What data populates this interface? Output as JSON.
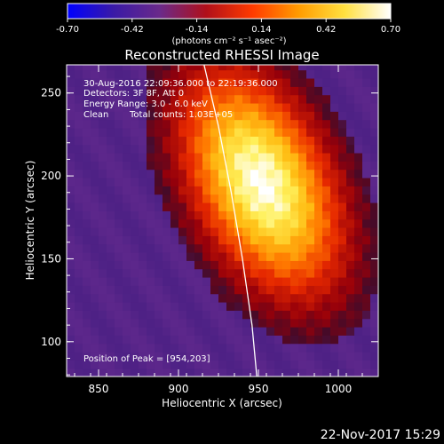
{
  "chart_data": {
    "type": "heatmap",
    "title": "Reconstructed RHESSI Image",
    "xlabel": "Heliocentric X (arcsec)",
    "ylabel": "Heliocentric Y (arcsec)",
    "xlim": [
      830,
      1025
    ],
    "ylim": [
      79,
      267
    ],
    "x_ticks": [
      850,
      900,
      950,
      1000
    ],
    "y_ticks": [
      100,
      150,
      200,
      250
    ],
    "grid": false,
    "colorbar": {
      "ticks": [
        "-0.70",
        "-0.42",
        "-0.14",
        "0.14",
        "0.42",
        "0.70"
      ],
      "range": [
        -0.7,
        0.7
      ],
      "units": "(photons cm⁻² s⁻¹ asec⁻²)",
      "colors": [
        "#0000ff",
        "#3a1aa6",
        "#6a2a8a",
        "#b0101a",
        "#ff3a00",
        "#ff9b00",
        "#ffe040",
        "#ffffff"
      ]
    },
    "annotations": {
      "time": "30-Aug-2016 22:09:36.000 to 22:19:36.000",
      "detectors": "Detectors: 3F 8F, Att 0",
      "energy": "Energy Range: 3.0 - 6.0 keV",
      "method": "Clean",
      "counts": "Total counts: 1.03E+05",
      "peak": "Position of Peak = [954,203]"
    },
    "peak": {
      "x": 954,
      "y": 203
    },
    "source": {
      "x": 952,
      "y": 196,
      "sx": 30,
      "sy": 52,
      "rot": 28
    },
    "background": 0.2,
    "limb_points": [
      [
        916,
        267
      ],
      [
        925,
        230
      ],
      [
        933,
        190
      ],
      [
        940,
        150
      ],
      [
        946,
        110
      ],
      [
        949,
        79
      ]
    ],
    "timestamp": "22-Nov-2017 15:29"
  }
}
